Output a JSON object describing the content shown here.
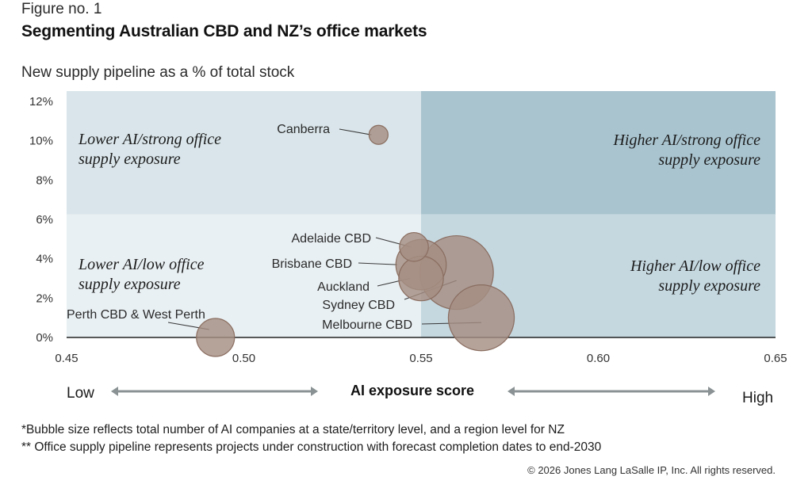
{
  "figure_label": "Figure no. 1",
  "title": "Segmenting Australian CBD and NZ’s office markets",
  "chart_data": {
    "type": "scatter",
    "ylabel": "New supply pipeline as a % of total stock",
    "xlabel": "AI exposure score",
    "xlim": [
      0.45,
      0.65
    ],
    "ylim": [
      0,
      12
    ],
    "xticks": [
      "0.45",
      "0.50",
      "0.55",
      "0.60",
      "0.65"
    ],
    "xtick_values": [
      0.45,
      0.5,
      0.55,
      0.6,
      0.65
    ],
    "yticks": [
      "0%",
      "2%",
      "4%",
      "6%",
      "8%",
      "10%",
      "12%"
    ],
    "ytick_values": [
      0,
      2,
      4,
      6,
      8,
      10,
      12
    ],
    "quadrant_split": {
      "x": 0.55,
      "y": 6.25
    },
    "quadrants": {
      "top_left": [
        "Lower AI/strong office",
        "supply exposure"
      ],
      "top_right": [
        "Higher AI/strong office",
        "supply exposure"
      ],
      "bottom_left": [
        "Lower AI/low office",
        "supply exposure"
      ],
      "bottom_right": [
        "Higher AI/low office",
        "supply exposure"
      ]
    },
    "axis_low": "Low",
    "axis_high": "High",
    "points": [
      {
        "label": "Canberra",
        "x": 0.538,
        "y": 10.3,
        "size": 1
      },
      {
        "label": "Adelaide CBD",
        "x": 0.548,
        "y": 4.6,
        "size": 2.3
      },
      {
        "label": "Brisbane CBD",
        "x": 0.55,
        "y": 3.7,
        "size": 7
      },
      {
        "label": "Auckland",
        "x": 0.55,
        "y": 3.0,
        "size": 5.5
      },
      {
        "label": "Sydney CBD",
        "x": 0.56,
        "y": 3.3,
        "size": 15
      },
      {
        "label": "Melbourne CBD",
        "x": 0.567,
        "y": 1.0,
        "size": 12
      },
      {
        "label": "Perth CBD & West Perth",
        "x": 0.492,
        "y": 0.0,
        "size": 4
      }
    ],
    "colors": {
      "bubble_fill": "#a58e82",
      "bubble_stroke": "#8a6d60",
      "quad_top_left": "#d9e5ea",
      "quad_top_right": "#a9c4cf",
      "quad_bottom_left": "#e9f0f3",
      "quad_bottom_right": "#c5d8e0",
      "arrow": "#8b9294"
    }
  },
  "notes": [
    "*Bubble size reflects total number of AI companies at a state/territory level, and a region level for NZ",
    "** Office supply pipeline represents projects under construction with forecast completion dates to end-2030"
  ],
  "copyright": "© 2026 Jones Lang LaSalle IP, Inc. All rights reserved."
}
